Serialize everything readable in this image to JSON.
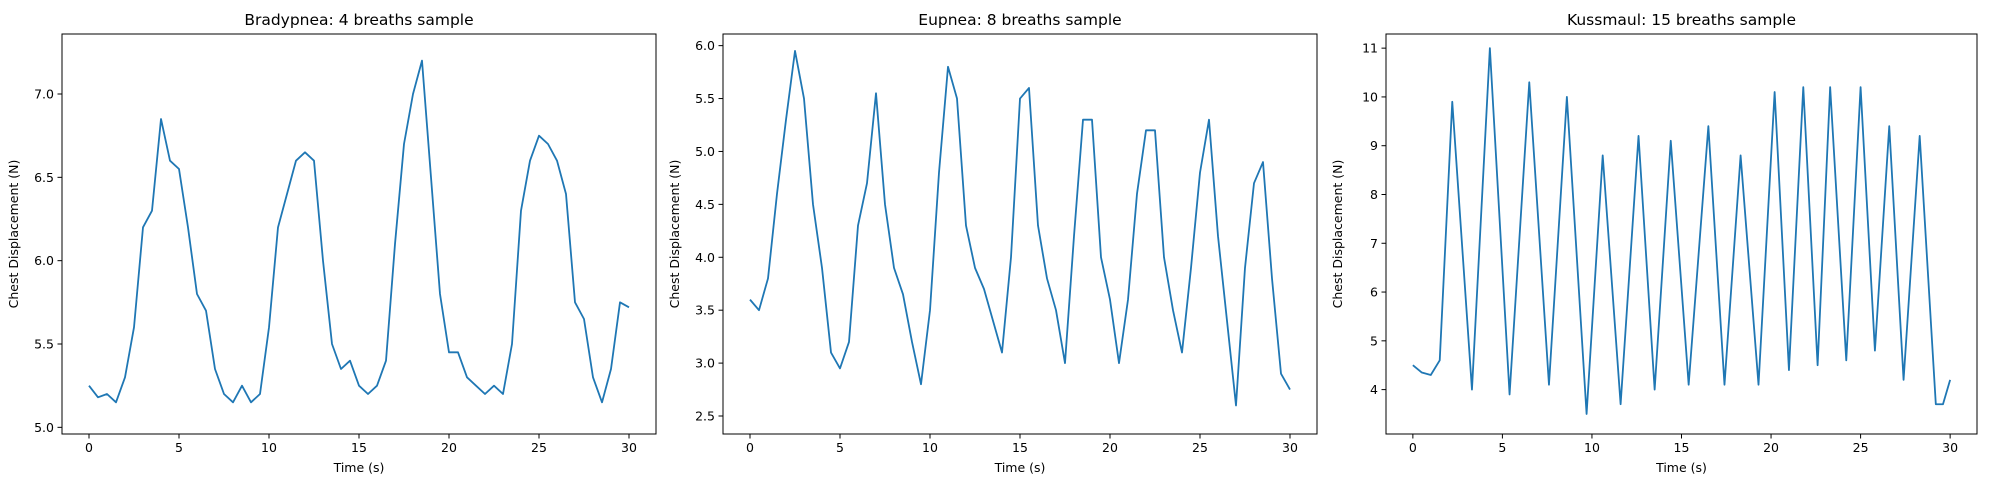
{
  "chart_data": [
    {
      "type": "line",
      "title": "Bradypnea: 4 breaths sample",
      "xlabel": "Time (s)",
      "ylabel": "Chest Displacement (N)",
      "color": "#1f77b4",
      "x": [
        0,
        0.5,
        1,
        1.5,
        2,
        2.5,
        3,
        3.5,
        4,
        4.5,
        5,
        5.5,
        6,
        6.5,
        7,
        7.5,
        8,
        8.5,
        9,
        9.5,
        10,
        10.5,
        11,
        11.5,
        12,
        12.5,
        13,
        13.5,
        14,
        14.5,
        15,
        15.5,
        16,
        16.5,
        17,
        17.5,
        18,
        18.5,
        19,
        19.5,
        20,
        20.5,
        21,
        21.5,
        22,
        22.5,
        23,
        23.5,
        24,
        24.5,
        25,
        25.5,
        26,
        26.5,
        27,
        27.5,
        28,
        28.5,
        29,
        29.5,
        30
      ],
      "values": [
        5.25,
        5.18,
        5.2,
        5.15,
        5.3,
        5.6,
        6.2,
        6.3,
        6.85,
        6.6,
        6.55,
        6.2,
        5.8,
        5.7,
        5.35,
        5.2,
        5.15,
        5.25,
        5.15,
        5.2,
        5.6,
        6.2,
        6.4,
        6.6,
        6.65,
        6.6,
        6.0,
        5.5,
        5.35,
        5.4,
        5.25,
        5.2,
        5.25,
        5.4,
        6.1,
        6.7,
        7.0,
        7.2,
        6.5,
        5.8,
        5.45,
        5.45,
        5.3,
        5.25,
        5.2,
        5.25,
        5.2,
        5.5,
        6.3,
        6.6,
        6.75,
        6.7,
        6.6,
        6.4,
        5.75,
        5.65,
        5.3,
        5.15,
        5.35,
        5.75,
        5.72
      ],
      "xlim": [
        -1.5,
        31.5
      ],
      "xticks": [
        0,
        5,
        10,
        15,
        20,
        25,
        30
      ],
      "ylim": [
        4.96,
        7.36
      ],
      "yticks": [
        {
          "value": 5.0,
          "label": "5.0"
        },
        5.5,
        {
          "value": 6.0,
          "label": "6.0"
        },
        6.5,
        {
          "value": 7.0,
          "label": "7.0"
        }
      ]
    },
    {
      "type": "line",
      "title": "Eupnea: 8 breaths sample",
      "xlabel": "Time (s)",
      "ylabel": "Chest Displacement (N)",
      "color": "#1f77b4",
      "x": [
        0,
        0.5,
        1,
        1.5,
        2,
        2.5,
        3,
        3.5,
        4,
        4.5,
        5,
        5.5,
        6,
        6.5,
        7,
        7.5,
        8,
        8.5,
        9,
        9.5,
        10,
        10.5,
        11,
        11.5,
        12,
        12.5,
        13,
        13.5,
        14,
        14.5,
        15,
        15.5,
        16,
        16.5,
        17,
        17.5,
        18,
        18.5,
        19,
        19.5,
        20,
        20.5,
        21,
        21.5,
        22,
        22.5,
        23,
        23.5,
        24,
        24.5,
        25,
        25.5,
        26,
        26.5,
        27,
        27.5,
        28,
        28.5,
        29,
        29.5,
        30
      ],
      "values": [
        3.6,
        3.5,
        3.8,
        4.6,
        5.3,
        5.95,
        5.5,
        4.5,
        3.9,
        3.1,
        2.95,
        3.2,
        4.3,
        4.7,
        5.55,
        4.5,
        3.9,
        3.65,
        3.2,
        2.8,
        3.5,
        4.8,
        5.8,
        5.5,
        4.3,
        3.9,
        3.7,
        3.4,
        3.1,
        4.0,
        5.5,
        5.6,
        4.3,
        3.8,
        3.5,
        3.0,
        4.2,
        5.3,
        5.3,
        4.0,
        3.6,
        3.0,
        3.6,
        4.6,
        5.2,
        5.2,
        4.0,
        3.5,
        3.1,
        3.9,
        4.8,
        5.3,
        4.2,
        3.4,
        2.6,
        3.9,
        4.7,
        4.9,
        3.8,
        2.9,
        2.75
      ],
      "xlim": [
        -1.5,
        31.5
      ],
      "xticks": [
        0,
        5,
        10,
        15,
        20,
        25,
        30
      ],
      "ylim": [
        2.33,
        6.11
      ],
      "yticks": [
        2.5,
        {
          "value": 3.0,
          "label": "3.0"
        },
        3.5,
        {
          "value": 4.0,
          "label": "4.0"
        },
        4.5,
        {
          "value": 5.0,
          "label": "5.0"
        },
        5.5,
        {
          "value": 6.0,
          "label": "6.0"
        }
      ]
    },
    {
      "type": "line",
      "title": "Kussmaul: 15 breaths sample",
      "xlabel": "Time (s)",
      "ylabel": "Chest Displacement (N)",
      "color": "#1f77b4",
      "x": [
        0,
        0.5,
        1,
        1.5,
        2.2,
        3.3,
        4.3,
        5.4,
        6.5,
        7.6,
        8.6,
        9.7,
        10.6,
        11.6,
        12.6,
        13.5,
        14.4,
        15.4,
        16.5,
        17.4,
        18.3,
        19.3,
        20.2,
        21.0,
        21.8,
        22.6,
        23.3,
        24.2,
        25.0,
        25.8,
        26.6,
        27.4,
        28.3,
        29.2,
        29.6,
        30
      ],
      "values": [
        4.5,
        4.35,
        4.3,
        4.6,
        9.9,
        4.0,
        11.0,
        3.9,
        10.3,
        4.1,
        10.0,
        3.5,
        8.8,
        3.7,
        9.2,
        4.0,
        9.1,
        4.1,
        9.4,
        4.1,
        8.8,
        4.1,
        10.1,
        4.4,
        10.2,
        4.5,
        10.2,
        4.6,
        10.2,
        4.8,
        9.4,
        4.2,
        9.2,
        3.7,
        3.7,
        4.2
      ],
      "xlim": [
        -1.5,
        31.5
      ],
      "xticks": [
        0,
        5,
        10,
        15,
        20,
        25,
        30
      ],
      "ylim": [
        3.09,
        11.29
      ],
      "yticks": [
        4,
        5,
        6,
        7,
        8,
        9,
        10,
        11
      ]
    }
  ]
}
